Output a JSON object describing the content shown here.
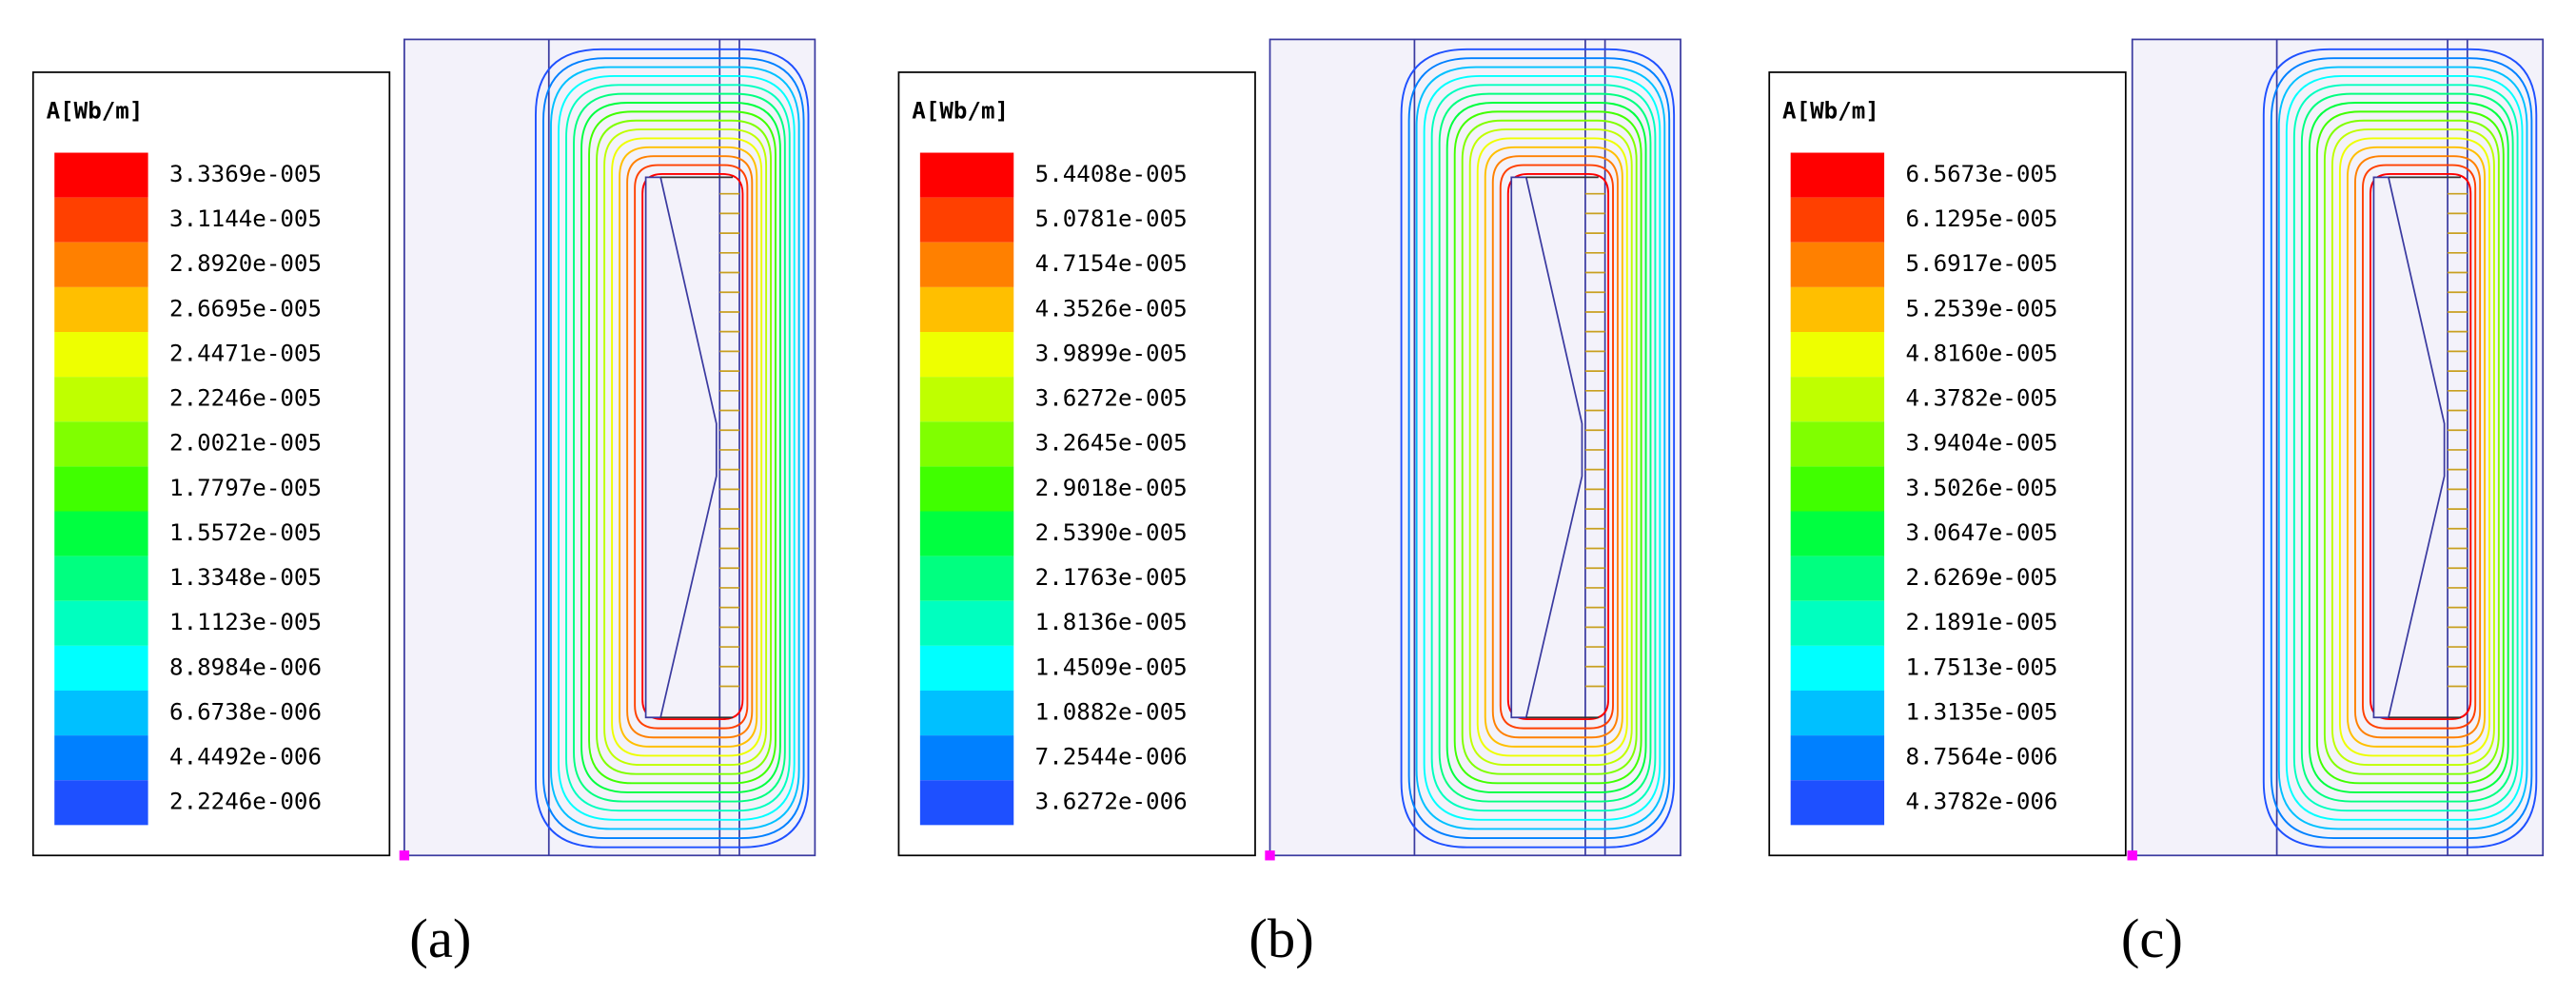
{
  "panels": [
    {
      "label": "(a)",
      "legend_title": "A[Wb/m]",
      "levels": [
        "3.3369e-005",
        "3.1144e-005",
        "2.8920e-005",
        "2.6695e-005",
        "2.4471e-005",
        "2.2246e-005",
        "2.0021e-005",
        "1.7797e-005",
        "1.5572e-005",
        "1.3348e-005",
        "1.1123e-005",
        "8.8984e-006",
        "6.6738e-006",
        "4.4492e-006",
        "2.2246e-006"
      ]
    },
    {
      "label": "(b)",
      "legend_title": "A[Wb/m]",
      "levels": [
        "5.4408e-005",
        "5.0781e-005",
        "4.7154e-005",
        "4.3526e-005",
        "3.9899e-005",
        "3.6272e-005",
        "3.2645e-005",
        "2.9018e-005",
        "2.5390e-005",
        "2.1763e-005",
        "1.8136e-005",
        "1.4509e-005",
        "1.0882e-005",
        "7.2544e-006",
        "3.6272e-006"
      ]
    },
    {
      "label": "(c)",
      "legend_title": "A[Wb/m]",
      "levels": [
        "6.5673e-005",
        "6.1295e-005",
        "5.6917e-005",
        "5.2539e-005",
        "4.8160e-005",
        "4.3782e-005",
        "3.9404e-005",
        "3.5026e-005",
        "3.0647e-005",
        "2.6269e-005",
        "2.1891e-005",
        "1.7513e-005",
        "1.3135e-005",
        "8.7564e-006",
        "4.3782e-006"
      ]
    }
  ]
}
